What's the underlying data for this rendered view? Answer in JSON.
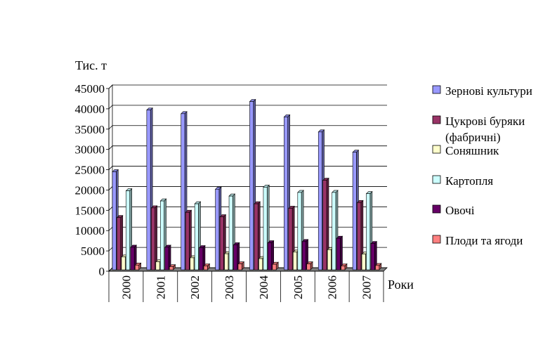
{
  "chart_data": {
    "type": "bar",
    "title": "",
    "ylabel": "Тис. т",
    "xlabel": "Роки",
    "ylim": [
      0,
      45000
    ],
    "y_ticks": [
      0,
      5000,
      10000,
      15000,
      20000,
      25000,
      30000,
      35000,
      40000,
      45000
    ],
    "grid": true,
    "legend_position": "right",
    "categories": [
      "2000",
      "2001",
      "2002",
      "2003",
      "2004",
      "2005",
      "2006",
      "2007"
    ],
    "series": [
      {
        "name": "Зернові культури",
        "color": "#9999ff",
        "values": [
          24500,
          39700,
          38800,
          20200,
          41800,
          38000,
          34300,
          29300
        ]
      },
      {
        "name": "Цукрові буряки (фабричні)",
        "color": "#993366",
        "values": [
          13200,
          15600,
          14500,
          13400,
          16600,
          15500,
          22400,
          16900
        ]
      },
      {
        "name": "Соняшник",
        "color": "#ffffcc",
        "values": [
          3500,
          2300,
          3300,
          4300,
          3100,
          4700,
          5300,
          4200
        ]
      },
      {
        "name": "Картопля",
        "color": "#ccffff",
        "values": [
          19800,
          17300,
          16600,
          18500,
          20700,
          19400,
          19400,
          19100
        ]
      },
      {
        "name": "Овочі",
        "color": "#660066",
        "values": [
          5900,
          5900,
          5800,
          6500,
          7000,
          7300,
          8100,
          6800
        ]
      },
      {
        "name": "Плоди та ягоди",
        "color": "#ff8080",
        "values": [
          1500,
          1100,
          1300,
          1800,
          1700,
          1800,
          1300,
          1400
        ]
      }
    ]
  }
}
